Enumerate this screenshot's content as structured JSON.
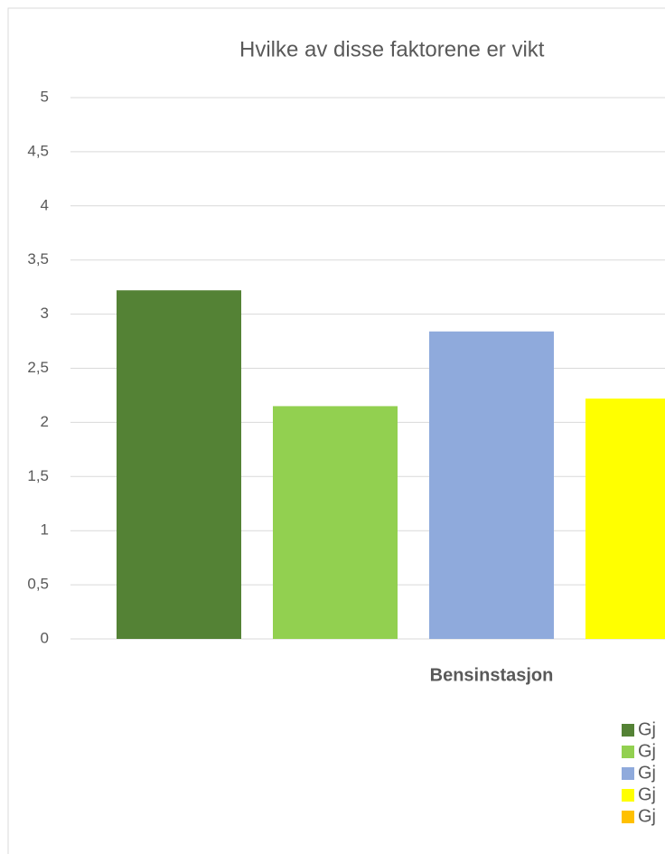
{
  "chart_data": {
    "type": "bar",
    "title": "Hvilke av disse faktorene er vikt",
    "categories": [
      "Bensinstasjon"
    ],
    "series": [
      {
        "name": "Gj",
        "color": "#548235",
        "values": [
          3.22
        ]
      },
      {
        "name": "Gj",
        "color": "#92d050",
        "values": [
          2.15
        ]
      },
      {
        "name": "Gj",
        "color": "#8faadc",
        "values": [
          2.84
        ]
      },
      {
        "name": "Gj",
        "color": "#ffff00",
        "values": [
          2.22
        ]
      },
      {
        "name": "Gj",
        "color": "#ffc000",
        "values": [
          null
        ]
      }
    ],
    "ylim": [
      0,
      5
    ],
    "yticks": [
      0,
      {
        "value": 0.5,
        "label": "0,5"
      },
      1,
      {
        "value": 1.5,
        "label": "1,5"
      },
      2,
      {
        "value": 2.5,
        "label": "2,5"
      },
      3,
      {
        "value": 3.5,
        "label": "3,5"
      },
      4,
      {
        "value": 4.5,
        "label": "4,5"
      },
      5
    ],
    "grid": true
  }
}
